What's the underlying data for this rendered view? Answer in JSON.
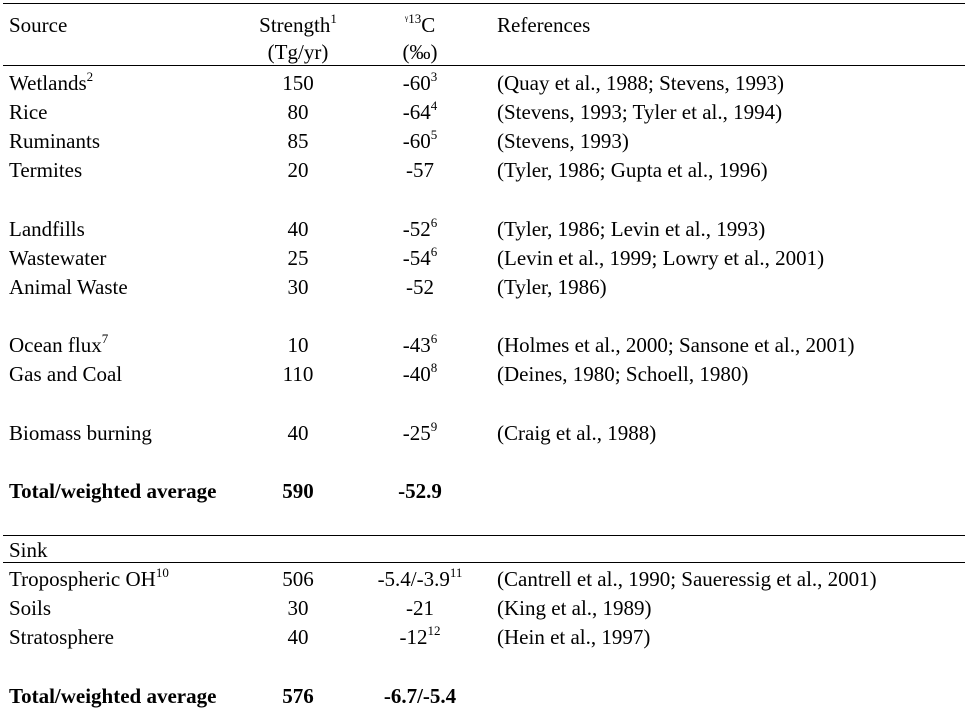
{
  "header": {
    "source": "Source",
    "strength": "Strength",
    "strength_note": "1",
    "strength_unit": "(Tg/yr)",
    "d13c_prefix": "ᵞ",
    "d13c_sup": "13",
    "d13c_suffix": "C",
    "d13c_unit": "(‰)",
    "references": "References"
  },
  "sources": [
    {
      "name": "Wetlands",
      "name_note": "2",
      "strength": "150",
      "d13c": "-60",
      "d13c_note": "3",
      "refs": "(Quay et al., 1988; Stevens, 1993)"
    },
    {
      "name": "Rice",
      "name_note": "",
      "strength": "80",
      "d13c": "-64",
      "d13c_note": "4",
      "refs": "(Stevens, 1993; Tyler et al., 1994)"
    },
    {
      "name": "Ruminants",
      "name_note": "",
      "strength": "85",
      "d13c": "-60",
      "d13c_note": "5",
      "refs": "(Stevens, 1993)"
    },
    {
      "name": "Termites",
      "name_note": "",
      "strength": "20",
      "d13c": "-57",
      "d13c_note": "",
      "refs": "(Tyler, 1986; Gupta et al., 1996)"
    },
    {
      "name": "Landfills",
      "name_note": "",
      "strength": "40",
      "d13c": "-52",
      "d13c_note": "6",
      "refs": "(Tyler, 1986; Levin et al., 1993)"
    },
    {
      "name": "Wastewater",
      "name_note": "",
      "strength": "25",
      "d13c": "-54",
      "d13c_note": "6",
      "refs": "(Levin et al., 1999; Lowry et al., 2001)"
    },
    {
      "name": "Animal Waste",
      "name_note": "",
      "strength": "30",
      "d13c": "-52",
      "d13c_note": "",
      "refs": "(Tyler, 1986)"
    },
    {
      "name": "Ocean flux",
      "name_note": "7",
      "strength": "10",
      "d13c": "-43",
      "d13c_note": "6",
      "refs": "(Holmes et al., 2000; Sansone et al., 2001)"
    },
    {
      "name": "Gas and Coal",
      "name_note": "",
      "strength": "110",
      "d13c": "-40",
      "d13c_note": "8",
      "refs": "(Deines, 1980; Schoell, 1980)"
    },
    {
      "name": "Biomass burning",
      "name_note": "",
      "strength": "40",
      "d13c": "-25",
      "d13c_note": "9",
      "refs": "(Craig et al., 1988)"
    }
  ],
  "source_total": {
    "label": "Total/weighted average",
    "strength": "590",
    "d13c": "-52.9"
  },
  "sink_header": "Sink",
  "sinks": [
    {
      "name": "Tropospheric OH",
      "name_note": "10",
      "strength": "506",
      "d13c": "-5.4/-3.9",
      "d13c_note": "11",
      "refs": "(Cantrell et al., 1990; Saueressig et al., 2001)"
    },
    {
      "name": "Soils",
      "name_note": "",
      "strength": "30",
      "d13c": "-21",
      "d13c_note": "",
      "refs": "(King et al., 1989)"
    },
    {
      "name": "Stratosphere",
      "name_note": "",
      "strength": "40",
      "d13c": "-12",
      "d13c_note": "12",
      "refs": "(Hein et al., 1997)"
    }
  ],
  "sink_total": {
    "label": "Total/weighted average",
    "strength": "576",
    "d13c": "-6.7/-5.4"
  }
}
